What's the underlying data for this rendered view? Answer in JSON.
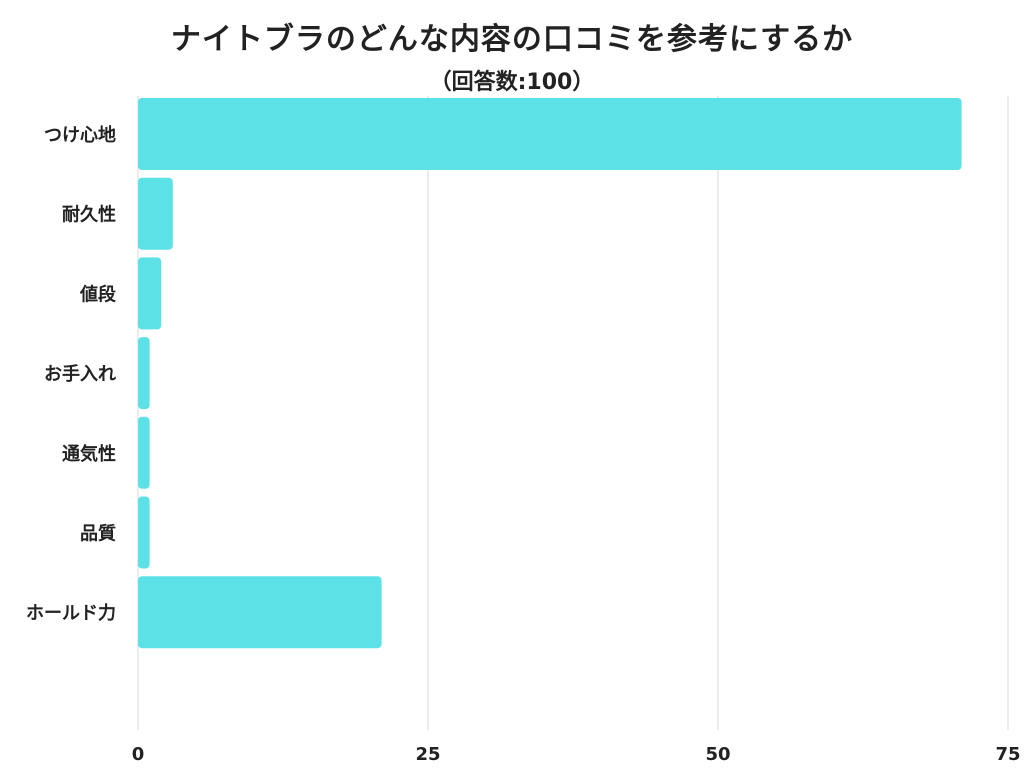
{
  "title": "ナイトブラのどんな内容の口コミを参考にするか",
  "subtitle": "（回答数:100）",
  "colors": {
    "bar": "#5ce1e6",
    "grid": "#d9d9d9",
    "text": "#222222"
  },
  "chart_data": {
    "type": "bar",
    "orientation": "horizontal",
    "title": "ナイトブラのどんな内容の口コミを参考にするか",
    "subtitle": "（回答数:100）",
    "categories": [
      "つけ心地",
      "耐久性",
      "値段",
      "お手入れ",
      "通気性",
      "品質",
      "ホールド力"
    ],
    "values": [
      71,
      3,
      2,
      1,
      1,
      1,
      21
    ],
    "xlim": [
      0,
      75
    ],
    "xticks": [
      0,
      25,
      50,
      75
    ],
    "grid": true,
    "legend": false
  }
}
